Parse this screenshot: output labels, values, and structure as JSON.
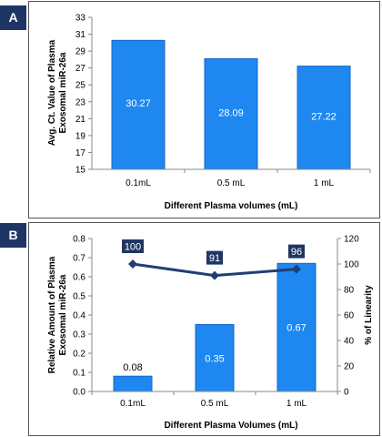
{
  "colors": {
    "bar": "#1e88f0",
    "bar_stroke": "#1566c4",
    "line": "#1f3f73",
    "badge": "#1f3664",
    "frame": "#555555"
  },
  "chart_data": [
    {
      "panel": "A",
      "type": "bar",
      "categories": [
        "0.1mL",
        "0.5 mL",
        "1 mL"
      ],
      "values": [
        30.27,
        28.09,
        27.22
      ],
      "data_labels": [
        "30.27",
        "28.09",
        "27.22"
      ],
      "xlabel": "Different Plasma volumes (mL)",
      "ylabel_lines": [
        "Avg. Ct. Value of Plasma",
        "Exosomal miR-26a"
      ],
      "ylim": [
        15,
        33
      ],
      "yticks": [
        15,
        17,
        19,
        21,
        23,
        25,
        27,
        29,
        31,
        33
      ],
      "grid": false
    },
    {
      "panel": "B",
      "type": "bar",
      "categories": [
        "0.1mL",
        "0.5 mL",
        "1 mL"
      ],
      "series": [
        {
          "axis": "left",
          "chart": "bar",
          "values": [
            0.08,
            0.35,
            0.67
          ],
          "data_labels": [
            "0.08",
            "0.35",
            "0.67"
          ]
        },
        {
          "axis": "right",
          "chart": "line",
          "values": [
            100,
            91,
            96
          ],
          "data_labels": [
            "100",
            "91",
            "96"
          ]
        }
      ],
      "xlabel": "Different Plasma Volumes (mL)",
      "ylabel_lines": [
        "Relative Amount of Plasma",
        "Exosomal miR-26a"
      ],
      "y2label": "% of Linearity",
      "ylim": [
        0,
        0.8
      ],
      "yticks": [
        "0.0",
        "0.1",
        "0.2",
        "0.3",
        "0.4",
        "0.5",
        "0.6",
        "0.7",
        "0.8"
      ],
      "y2lim": [
        0,
        120
      ],
      "y2ticks": [
        "0",
        "20",
        "40",
        "60",
        "80",
        "100",
        "120"
      ],
      "grid": false
    }
  ]
}
